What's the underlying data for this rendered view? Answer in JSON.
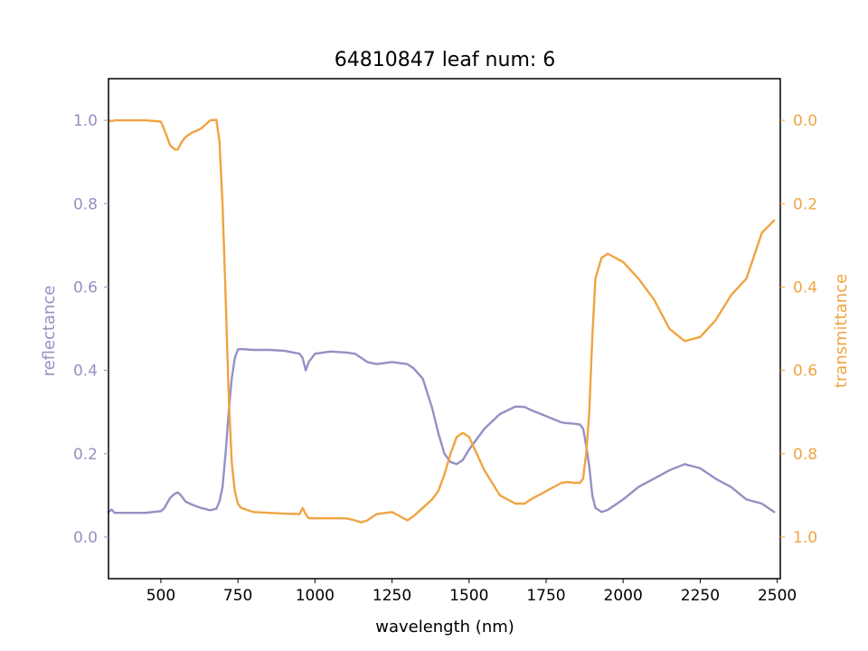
{
  "chart_data": {
    "type": "line",
    "title": "64810847 leaf num: 6",
    "xlabel": "wavelength (nm)",
    "ylabel_left": "reflectance",
    "ylabel_right": "transmittance",
    "xlim": [
      330,
      2510
    ],
    "ylim_left": [
      -0.1,
      1.1
    ],
    "ylim_right": [
      1.1,
      -0.1
    ],
    "right_axis_inverted": true,
    "grid": false,
    "x_ticks": [
      500,
      750,
      1000,
      1250,
      1500,
      1750,
      2000,
      2250,
      2500
    ],
    "y_ticks_left": [
      0.0,
      0.2,
      0.4,
      0.6,
      0.8,
      1.0
    ],
    "y_ticks_right": [
      0.0,
      0.2,
      0.4,
      0.6,
      0.8,
      1.0
    ],
    "x_tick_labels": [
      "500",
      "750",
      "1000",
      "1250",
      "1500",
      "1750",
      "2000",
      "2250",
      "2500"
    ],
    "y_tick_labels_left": [
      "0.0",
      "0.2",
      "0.4",
      "0.6",
      "0.8",
      "1.0"
    ],
    "y_tick_labels_right": [
      "0.0",
      "0.2",
      "0.4",
      "0.6",
      "0.8",
      "1.0"
    ],
    "series": [
      {
        "axis": "left",
        "color": "#9590c3",
        "x": [
          330,
          340,
          350,
          400,
          450,
          500,
          510,
          530,
          545,
          555,
          565,
          580,
          600,
          630,
          660,
          680,
          690,
          700,
          710,
          720,
          730,
          740,
          750,
          760,
          780,
          800,
          850,
          900,
          950,
          960,
          970,
          980,
          1000,
          1050,
          1100,
          1130,
          1150,
          1170,
          1200,
          1250,
          1300,
          1320,
          1350,
          1380,
          1400,
          1420,
          1440,
          1460,
          1480,
          1500,
          1550,
          1600,
          1650,
          1680,
          1700,
          1750,
          1800,
          1820,
          1840,
          1860,
          1870,
          1880,
          1890,
          1900,
          1910,
          1930,
          1950,
          2000,
          2050,
          2100,
          2150,
          2200,
          2250,
          2300,
          2350,
          2400,
          2450,
          2490
        ],
        "y": [
          0.06,
          0.066,
          0.058,
          0.058,
          0.058,
          0.062,
          0.068,
          0.094,
          0.104,
          0.107,
          0.1,
          0.085,
          0.078,
          0.07,
          0.064,
          0.068,
          0.085,
          0.12,
          0.2,
          0.3,
          0.38,
          0.43,
          0.45,
          0.451,
          0.45,
          0.449,
          0.449,
          0.447,
          0.44,
          0.43,
          0.4,
          0.42,
          0.44,
          0.445,
          0.443,
          0.44,
          0.43,
          0.42,
          0.415,
          0.42,
          0.415,
          0.405,
          0.38,
          0.31,
          0.25,
          0.2,
          0.18,
          0.175,
          0.185,
          0.21,
          0.26,
          0.295,
          0.313,
          0.312,
          0.305,
          0.29,
          0.275,
          0.273,
          0.272,
          0.27,
          0.26,
          0.22,
          0.17,
          0.1,
          0.07,
          0.06,
          0.065,
          0.09,
          0.12,
          0.14,
          0.16,
          0.175,
          0.165,
          0.14,
          0.12,
          0.09,
          0.08,
          0.06
        ]
      },
      {
        "axis": "right",
        "color": "#f0a442",
        "x": [
          330,
          340,
          350,
          400,
          450,
          500,
          510,
          530,
          545,
          555,
          565,
          580,
          600,
          630,
          660,
          680,
          690,
          700,
          710,
          720,
          730,
          740,
          750,
          760,
          780,
          800,
          850,
          900,
          950,
          960,
          970,
          980,
          1000,
          1050,
          1100,
          1130,
          1150,
          1170,
          1200,
          1250,
          1300,
          1320,
          1350,
          1380,
          1400,
          1420,
          1440,
          1460,
          1480,
          1500,
          1550,
          1600,
          1650,
          1680,
          1700,
          1750,
          1800,
          1820,
          1840,
          1860,
          1870,
          1880,
          1890,
          1900,
          1910,
          1930,
          1950,
          2000,
          2050,
          2100,
          2150,
          2200,
          2250,
          2300,
          2350,
          2400,
          2450,
          2490
        ],
        "y": [
          0.0,
          0.002,
          0.0,
          0.0,
          0.0,
          0.003,
          0.02,
          0.06,
          0.07,
          0.07,
          0.055,
          0.04,
          0.03,
          0.02,
          0.0,
          -0.001,
          0.05,
          0.2,
          0.42,
          0.66,
          0.82,
          0.89,
          0.92,
          0.93,
          0.935,
          0.94,
          0.942,
          0.944,
          0.945,
          0.93,
          0.945,
          0.955,
          0.955,
          0.955,
          0.955,
          0.96,
          0.965,
          0.96,
          0.945,
          0.94,
          0.96,
          0.95,
          0.93,
          0.91,
          0.89,
          0.85,
          0.8,
          0.76,
          0.75,
          0.76,
          0.84,
          0.9,
          0.92,
          0.92,
          0.91,
          0.89,
          0.87,
          0.868,
          0.87,
          0.87,
          0.86,
          0.8,
          0.7,
          0.52,
          0.38,
          0.33,
          0.32,
          0.34,
          0.38,
          0.43,
          0.5,
          0.53,
          0.52,
          0.48,
          0.42,
          0.38,
          0.27,
          0.24
        ]
      }
    ]
  }
}
